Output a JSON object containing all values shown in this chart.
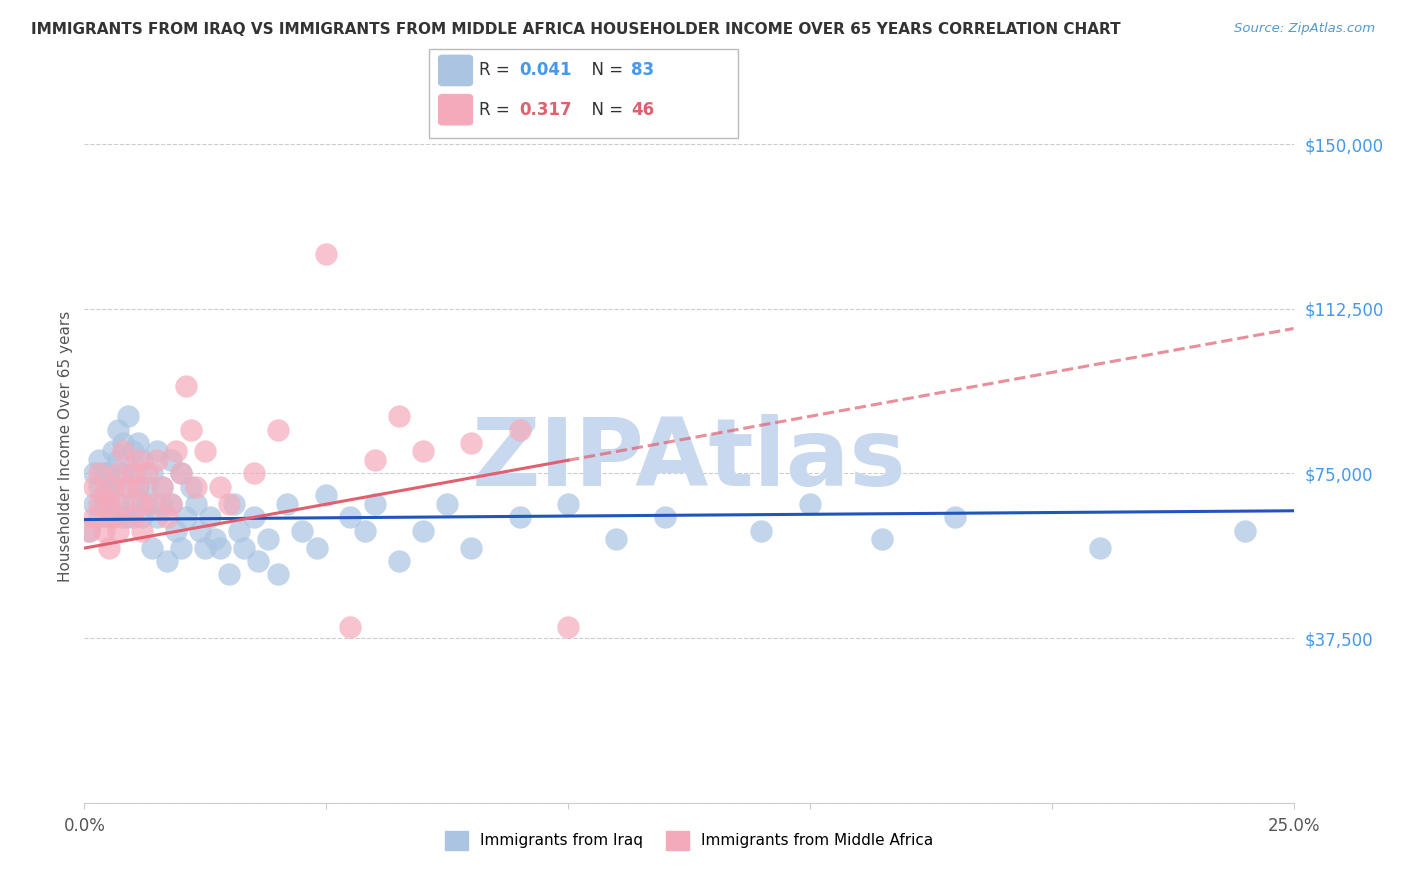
{
  "title": "IMMIGRANTS FROM IRAQ VS IMMIGRANTS FROM MIDDLE AFRICA HOUSEHOLDER INCOME OVER 65 YEARS CORRELATION CHART",
  "source": "Source: ZipAtlas.com",
  "ylabel": "Householder Income Over 65 years",
  "xlim": [
    0.0,
    0.25
  ],
  "ylim": [
    0,
    162500
  ],
  "yticks": [
    0,
    37500,
    75000,
    112500,
    150000
  ],
  "ytick_labels": [
    "",
    "$37,500",
    "$75,000",
    "$112,500",
    "$150,000"
  ],
  "xticks": [
    0.0,
    0.05,
    0.1,
    0.15,
    0.2,
    0.25
  ],
  "xtick_labels": [
    "0.0%",
    "",
    "",
    "",
    "",
    "25.0%"
  ],
  "iraq_color": "#aac4e2",
  "africa_color": "#f5aabb",
  "iraq_line_color": "#2255bb",
  "africa_line_color": "#e06070",
  "watermark_color": "#c8d8ee",
  "iraq_N": 83,
  "iraq_R": "0.041",
  "africa_N": 46,
  "africa_R": "0.317",
  "iraq_scatter_x": [
    0.001,
    0.002,
    0.002,
    0.003,
    0.003,
    0.003,
    0.004,
    0.004,
    0.004,
    0.005,
    0.005,
    0.005,
    0.005,
    0.006,
    0.006,
    0.006,
    0.007,
    0.007,
    0.007,
    0.008,
    0.008,
    0.008,
    0.009,
    0.009,
    0.009,
    0.01,
    0.01,
    0.01,
    0.011,
    0.011,
    0.012,
    0.012,
    0.013,
    0.013,
    0.014,
    0.014,
    0.015,
    0.015,
    0.016,
    0.016,
    0.017,
    0.018,
    0.018,
    0.019,
    0.02,
    0.02,
    0.021,
    0.022,
    0.023,
    0.024,
    0.025,
    0.026,
    0.027,
    0.028,
    0.03,
    0.031,
    0.032,
    0.033,
    0.035,
    0.036,
    0.038,
    0.04,
    0.042,
    0.045,
    0.048,
    0.05,
    0.055,
    0.058,
    0.06,
    0.065,
    0.07,
    0.075,
    0.08,
    0.09,
    0.1,
    0.11,
    0.12,
    0.14,
    0.15,
    0.165,
    0.18,
    0.21,
    0.24
  ],
  "iraq_scatter_y": [
    62000,
    68000,
    75000,
    72000,
    65000,
    78000,
    70000,
    68000,
    75000,
    72000,
    65000,
    68000,
    75000,
    80000,
    72000,
    65000,
    78000,
    85000,
    68000,
    82000,
    75000,
    65000,
    88000,
    72000,
    65000,
    80000,
    68000,
    75000,
    82000,
    72000,
    78000,
    65000,
    72000,
    68000,
    75000,
    58000,
    80000,
    65000,
    72000,
    68000,
    55000,
    78000,
    68000,
    62000,
    75000,
    58000,
    65000,
    72000,
    68000,
    62000,
    58000,
    65000,
    60000,
    58000,
    52000,
    68000,
    62000,
    58000,
    65000,
    55000,
    60000,
    52000,
    68000,
    62000,
    58000,
    70000,
    65000,
    62000,
    68000,
    55000,
    62000,
    68000,
    58000,
    65000,
    68000,
    60000,
    65000,
    62000,
    68000,
    60000,
    65000,
    58000,
    62000
  ],
  "africa_scatter_x": [
    0.001,
    0.002,
    0.002,
    0.003,
    0.003,
    0.004,
    0.004,
    0.005,
    0.005,
    0.006,
    0.006,
    0.007,
    0.007,
    0.008,
    0.008,
    0.009,
    0.01,
    0.01,
    0.011,
    0.011,
    0.012,
    0.012,
    0.013,
    0.014,
    0.015,
    0.016,
    0.017,
    0.018,
    0.019,
    0.02,
    0.021,
    0.022,
    0.023,
    0.025,
    0.028,
    0.03,
    0.035,
    0.04,
    0.05,
    0.055,
    0.06,
    0.065,
    0.07,
    0.08,
    0.09,
    0.1
  ],
  "africa_scatter_y": [
    62000,
    65000,
    72000,
    68000,
    75000,
    70000,
    62000,
    58000,
    68000,
    72000,
    65000,
    75000,
    62000,
    68000,
    80000,
    72000,
    65000,
    75000,
    78000,
    72000,
    68000,
    62000,
    75000,
    68000,
    78000,
    72000,
    65000,
    68000,
    80000,
    75000,
    95000,
    85000,
    72000,
    80000,
    72000,
    68000,
    75000,
    85000,
    125000,
    40000,
    78000,
    88000,
    80000,
    82000,
    85000,
    40000
  ]
}
